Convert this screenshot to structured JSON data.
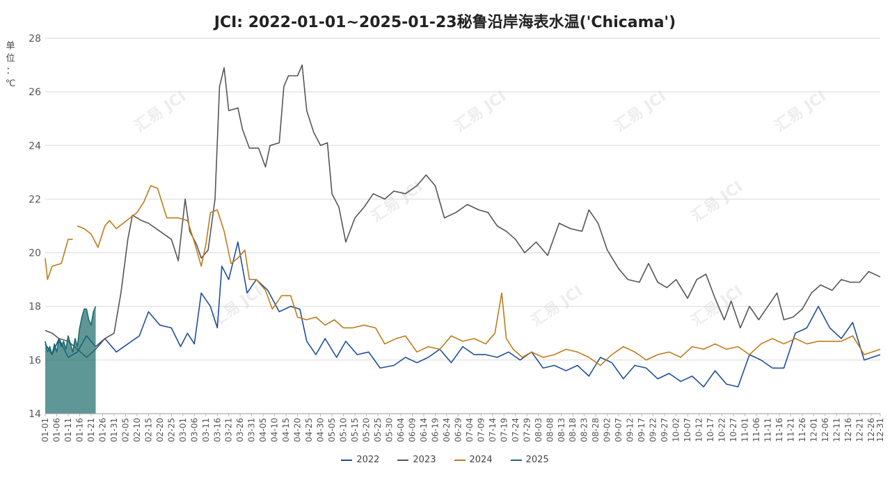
{
  "chart_data": {
    "type": "line",
    "title": "JCI: 2022-01-01~2025-01-23秘鲁沿岸海表水温('Chicama')",
    "ylabel": "单位：℃",
    "ylim": [
      14,
      28
    ],
    "yticks": [
      "14",
      "16",
      "18",
      "20",
      "22",
      "24",
      "26",
      "28"
    ],
    "xticks": [
      "01-01",
      "01-06",
      "01-11",
      "01-16",
      "01-21",
      "01-26",
      "01-31",
      "02-05",
      "02-10",
      "02-15",
      "02-20",
      "02-25",
      "03-01",
      "03-06",
      "03-11",
      "03-16",
      "03-21",
      "03-26",
      "03-31",
      "04-05",
      "04-10",
      "04-15",
      "04-20",
      "04-25",
      "04-30",
      "05-05",
      "05-10",
      "05-15",
      "05-20",
      "05-25",
      "05-30",
      "06-04",
      "06-09",
      "06-14",
      "06-19",
      "06-24",
      "06-29",
      "07-04",
      "07-09",
      "07-14",
      "07-19",
      "07-24",
      "07-29",
      "08-03",
      "08-08",
      "08-13",
      "08-18",
      "08-23",
      "08-28",
      "09-02",
      "09-07",
      "09-12",
      "09-17",
      "09-22",
      "09-27",
      "10-02",
      "10-07",
      "10-12",
      "10-17",
      "10-22",
      "10-27",
      "11-01",
      "11-06",
      "11-11",
      "11-16",
      "11-21",
      "11-26",
      "12-01",
      "12-06",
      "12-11",
      "12-16",
      "12-21",
      "12-26",
      "12-31"
    ],
    "watermark": "汇易 JCI",
    "series": [
      {
        "name": "2022",
        "color": "#1f4e96",
        "points": [
          [
            0,
            16.6
          ],
          [
            3,
            16.2
          ],
          [
            6,
            16.8
          ],
          [
            10,
            16.1
          ],
          [
            14,
            16.3
          ],
          [
            18,
            16.9
          ],
          [
            22,
            16.5
          ],
          [
            26,
            16.8
          ],
          [
            31,
            16.3
          ],
          [
            36,
            16.6
          ],
          [
            41,
            16.9
          ],
          [
            45,
            17.8
          ],
          [
            50,
            17.3
          ],
          [
            55,
            17.2
          ],
          [
            59,
            16.5
          ],
          [
            62,
            17.0
          ],
          [
            65,
            16.6
          ],
          [
            68,
            18.5
          ],
          [
            72,
            18.0
          ],
          [
            75,
            17.2
          ],
          [
            77,
            19.5
          ],
          [
            80,
            19.0
          ],
          [
            84,
            20.4
          ],
          [
            88,
            18.5
          ],
          [
            92,
            19.0
          ],
          [
            97,
            18.6
          ],
          [
            102,
            17.8
          ],
          [
            107,
            18.0
          ],
          [
            111,
            17.9
          ],
          [
            114,
            16.7
          ],
          [
            118,
            16.2
          ],
          [
            122,
            16.8
          ],
          [
            127,
            16.1
          ],
          [
            131,
            16.7
          ],
          [
            136,
            16.2
          ],
          [
            141,
            16.3
          ],
          [
            146,
            15.7
          ],
          [
            152,
            15.8
          ],
          [
            157,
            16.1
          ],
          [
            162,
            15.9
          ],
          [
            167,
            16.1
          ],
          [
            172,
            16.4
          ],
          [
            177,
            15.9
          ],
          [
            182,
            16.5
          ],
          [
            187,
            16.2
          ],
          [
            192,
            16.2
          ],
          [
            197,
            16.1
          ],
          [
            202,
            16.3
          ],
          [
            207,
            16.0
          ],
          [
            212,
            16.3
          ],
          [
            217,
            15.7
          ],
          [
            222,
            15.8
          ],
          [
            227,
            15.6
          ],
          [
            232,
            15.8
          ],
          [
            237,
            15.4
          ],
          [
            242,
            16.1
          ],
          [
            247,
            15.9
          ],
          [
            252,
            15.3
          ],
          [
            257,
            15.8
          ],
          [
            262,
            15.7
          ],
          [
            267,
            15.3
          ],
          [
            272,
            15.5
          ],
          [
            277,
            15.2
          ],
          [
            282,
            15.4
          ],
          [
            287,
            15.0
          ],
          [
            292,
            15.6
          ],
          [
            297,
            15.1
          ],
          [
            302,
            15.0
          ],
          [
            307,
            16.2
          ],
          [
            312,
            16.0
          ],
          [
            317,
            15.7
          ],
          [
            322,
            15.7
          ],
          [
            327,
            17.0
          ],
          [
            332,
            17.2
          ],
          [
            337,
            18.0
          ],
          [
            342,
            17.2
          ],
          [
            347,
            16.8
          ],
          [
            352,
            17.4
          ],
          [
            357,
            16.0
          ],
          [
            364,
            16.2
          ]
        ]
      },
      {
        "name": "2023",
        "color": "#555555",
        "points": [
          [
            0,
            17.1
          ],
          [
            3,
            17.0
          ],
          [
            6,
            16.8
          ],
          [
            10,
            16.7
          ],
          [
            14,
            16.4
          ],
          [
            18,
            16.1
          ],
          [
            22,
            16.4
          ],
          [
            26,
            16.8
          ],
          [
            30,
            17.0
          ],
          [
            33,
            18.5
          ],
          [
            36,
            20.5
          ],
          [
            38,
            21.4
          ],
          [
            42,
            21.2
          ],
          [
            45,
            21.1
          ],
          [
            50,
            20.8
          ],
          [
            55,
            20.5
          ],
          [
            58,
            19.7
          ],
          [
            61,
            22.0
          ],
          [
            63,
            20.8
          ],
          [
            66,
            20.3
          ],
          [
            68,
            19.8
          ],
          [
            71,
            20.1
          ],
          [
            74,
            22.0
          ],
          [
            76,
            26.2
          ],
          [
            78,
            26.9
          ],
          [
            80,
            25.3
          ],
          [
            84,
            25.4
          ],
          [
            86,
            24.6
          ],
          [
            89,
            23.9
          ],
          [
            93,
            23.9
          ],
          [
            96,
            23.2
          ],
          [
            98,
            24.0
          ],
          [
            102,
            24.1
          ],
          [
            104,
            26.2
          ],
          [
            106,
            26.6
          ],
          [
            110,
            26.6
          ],
          [
            112,
            27.0
          ],
          [
            114,
            25.3
          ],
          [
            117,
            24.5
          ],
          [
            120,
            24.0
          ],
          [
            123,
            24.1
          ],
          [
            125,
            22.2
          ],
          [
            128,
            21.7
          ],
          [
            131,
            20.4
          ],
          [
            135,
            21.3
          ],
          [
            139,
            21.7
          ],
          [
            143,
            22.2
          ],
          [
            148,
            22.0
          ],
          [
            152,
            22.3
          ],
          [
            157,
            22.2
          ],
          [
            162,
            22.5
          ],
          [
            166,
            22.9
          ],
          [
            170,
            22.5
          ],
          [
            174,
            21.3
          ],
          [
            179,
            21.5
          ],
          [
            184,
            21.8
          ],
          [
            189,
            21.6
          ],
          [
            193,
            21.5
          ],
          [
            197,
            21.0
          ],
          [
            201,
            20.8
          ],
          [
            205,
            20.5
          ],
          [
            209,
            20.0
          ],
          [
            214,
            20.4
          ],
          [
            219,
            19.9
          ],
          [
            224,
            21.1
          ],
          [
            229,
            20.9
          ],
          [
            234,
            20.8
          ],
          [
            237,
            21.6
          ],
          [
            241,
            21.1
          ],
          [
            245,
            20.1
          ],
          [
            250,
            19.4
          ],
          [
            254,
            19.0
          ],
          [
            259,
            18.9
          ],
          [
            263,
            19.6
          ],
          [
            267,
            18.9
          ],
          [
            271,
            18.7
          ],
          [
            275,
            19.0
          ],
          [
            280,
            18.3
          ],
          [
            284,
            19.0
          ],
          [
            288,
            19.2
          ],
          [
            292,
            18.3
          ],
          [
            296,
            17.5
          ],
          [
            299,
            18.2
          ],
          [
            303,
            17.2
          ],
          [
            307,
            18.0
          ],
          [
            311,
            17.5
          ],
          [
            315,
            18.0
          ],
          [
            319,
            18.5
          ],
          [
            322,
            17.5
          ],
          [
            326,
            17.6
          ],
          [
            330,
            17.9
          ],
          [
            334,
            18.5
          ],
          [
            338,
            18.8
          ],
          [
            343,
            18.6
          ],
          [
            347,
            19.0
          ],
          [
            351,
            18.9
          ],
          [
            355,
            18.9
          ],
          [
            359,
            19.3
          ],
          [
            364,
            19.1
          ]
        ]
      },
      {
        "name": "2024",
        "color": "#c07a19",
        "points": [
          [
            0,
            19.8
          ],
          [
            1,
            19.0
          ],
          [
            3,
            19.5
          ],
          [
            7,
            19.6
          ],
          [
            10,
            20.5
          ],
          [
            12,
            20.5
          ],
          [
            13,
            null
          ],
          [
            14,
            21.0
          ],
          [
            17,
            20.9
          ],
          [
            20,
            20.7
          ],
          [
            23,
            20.2
          ],
          [
            26,
            21.0
          ],
          [
            28,
            21.2
          ],
          [
            31,
            20.9
          ],
          [
            34,
            21.1
          ],
          [
            37,
            21.3
          ],
          [
            40,
            21.5
          ],
          [
            43,
            21.9
          ],
          [
            46,
            22.5
          ],
          [
            49,
            22.4
          ],
          [
            53,
            21.3
          ],
          [
            58,
            21.3
          ],
          [
            62,
            21.2
          ],
          [
            65,
            20.4
          ],
          [
            68,
            19.5
          ],
          [
            70,
            20.3
          ],
          [
            72,
            21.5
          ],
          [
            75,
            21.6
          ],
          [
            78,
            20.8
          ],
          [
            81,
            19.6
          ],
          [
            84,
            19.8
          ],
          [
            87,
            20.1
          ],
          [
            89,
            19.0
          ],
          [
            92,
            19.0
          ],
          [
            96,
            18.6
          ],
          [
            99,
            17.9
          ],
          [
            103,
            18.4
          ],
          [
            107,
            18.4
          ],
          [
            110,
            17.6
          ],
          [
            114,
            17.5
          ],
          [
            118,
            17.6
          ],
          [
            122,
            17.3
          ],
          [
            126,
            17.5
          ],
          [
            130,
            17.2
          ],
          [
            134,
            17.2
          ],
          [
            139,
            17.3
          ],
          [
            144,
            17.2
          ],
          [
            148,
            16.6
          ],
          [
            153,
            16.8
          ],
          [
            157,
            16.9
          ],
          [
            162,
            16.3
          ],
          [
            167,
            16.5
          ],
          [
            172,
            16.4
          ],
          [
            177,
            16.9
          ],
          [
            182,
            16.7
          ],
          [
            187,
            16.8
          ],
          [
            192,
            16.6
          ],
          [
            196,
            17.0
          ],
          [
            199,
            18.5
          ],
          [
            201,
            16.8
          ],
          [
            204,
            16.4
          ],
          [
            208,
            16.1
          ],
          [
            212,
            16.3
          ],
          [
            217,
            16.1
          ],
          [
            222,
            16.2
          ],
          [
            227,
            16.4
          ],
          [
            232,
            16.3
          ],
          [
            237,
            16.1
          ],
          [
            242,
            15.8
          ],
          [
            247,
            16.2
          ],
          [
            252,
            16.5
          ],
          [
            257,
            16.3
          ],
          [
            262,
            16.0
          ],
          [
            267,
            16.2
          ],
          [
            272,
            16.3
          ],
          [
            277,
            16.1
          ],
          [
            282,
            16.5
          ],
          [
            287,
            16.4
          ],
          [
            292,
            16.6
          ],
          [
            297,
            16.4
          ],
          [
            302,
            16.5
          ],
          [
            307,
            16.2
          ],
          [
            312,
            16.6
          ],
          [
            317,
            16.8
          ],
          [
            322,
            16.6
          ],
          [
            327,
            16.8
          ],
          [
            332,
            16.6
          ],
          [
            337,
            16.7
          ],
          [
            342,
            16.7
          ],
          [
            347,
            16.7
          ],
          [
            352,
            16.9
          ],
          [
            357,
            16.2
          ],
          [
            364,
            16.4
          ]
        ]
      },
      {
        "name": "2025",
        "color": "#1b6b6b",
        "points": [
          [
            0,
            16.7
          ],
          [
            1,
            16.3
          ],
          [
            2,
            16.5
          ],
          [
            3,
            16.2
          ],
          [
            4,
            16.6
          ],
          [
            5,
            16.3
          ],
          [
            6,
            16.8
          ],
          [
            7,
            16.5
          ],
          [
            8,
            16.7
          ],
          [
            9,
            16.4
          ],
          [
            10,
            16.9
          ],
          [
            11,
            16.6
          ],
          [
            12,
            16.3
          ],
          [
            13,
            16.8
          ],
          [
            14,
            16.5
          ],
          [
            15,
            17.2
          ],
          [
            16,
            17.6
          ],
          [
            17,
            17.9
          ],
          [
            18,
            17.9
          ],
          [
            19,
            17.5
          ],
          [
            20,
            17.3
          ],
          [
            21,
            17.8
          ],
          [
            22,
            18.0
          ]
        ]
      }
    ]
  }
}
